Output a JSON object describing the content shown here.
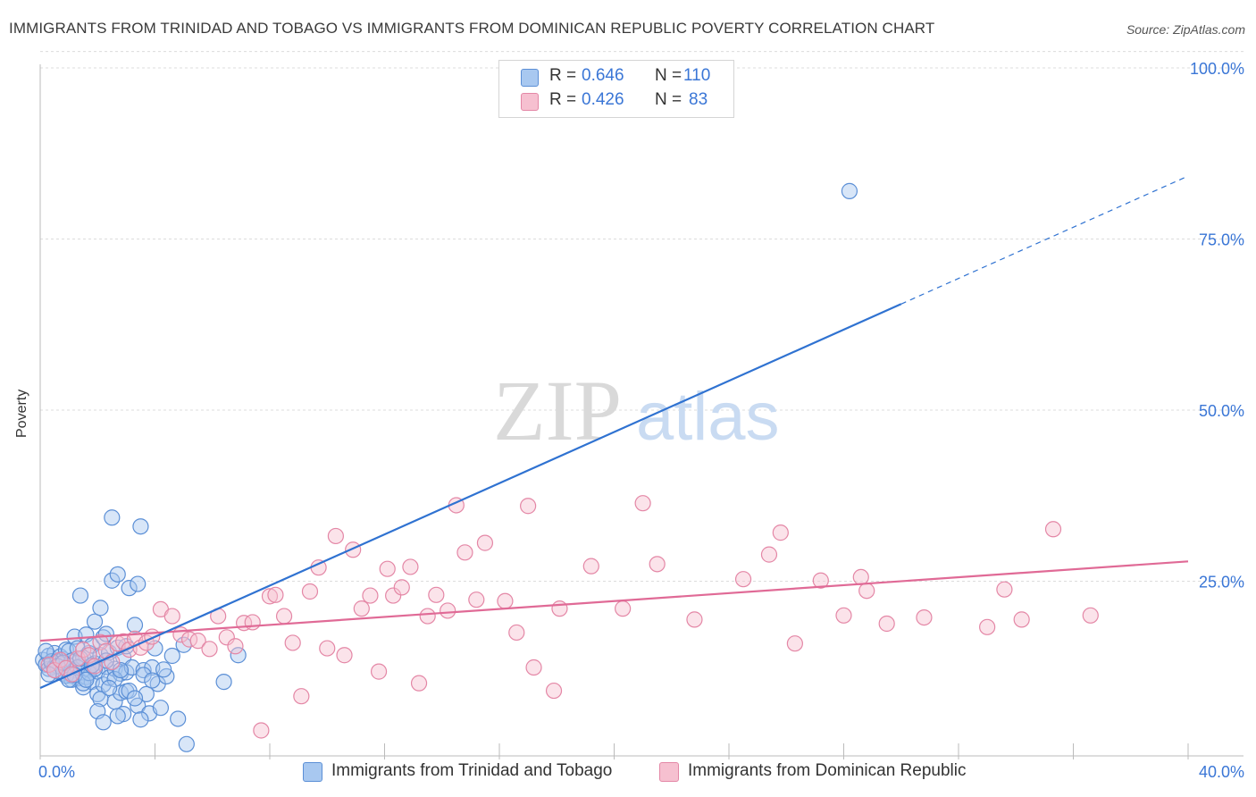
{
  "header": {
    "title": "IMMIGRANTS FROM TRINIDAD AND TOBAGO VS IMMIGRANTS FROM DOMINICAN REPUBLIC POVERTY CORRELATION CHART",
    "source": "Source: ZipAtlas.com"
  },
  "legend": {
    "r_label": "R =",
    "n_label": "N =",
    "series": [
      {
        "r": "0.646",
        "n": "110"
      },
      {
        "r": "0.426",
        "n": "83"
      }
    ]
  },
  "watermark": {
    "zip": "ZIP",
    "atlas": "atlas"
  },
  "colors": {
    "blue_fill": "#a8c8f0",
    "blue_stroke": "#5b8fd6",
    "blue_line": "#2f72d1",
    "pink_fill": "#f6c0d0",
    "pink_stroke": "#e487a6",
    "pink_line": "#e06a96",
    "tick_label": "#3a76d6",
    "grid": "#dcdcdc"
  },
  "chart_data": {
    "type": "scatter",
    "title": "IMMIGRANTS FROM TRINIDAD AND TOBAGO VS IMMIGRANTS FROM DOMINICAN REPUBLIC POVERTY CORRELATION CHART",
    "xlabel": "",
    "ylabel": "Poverty",
    "xlim": [
      0,
      40
    ],
    "ylim": [
      0,
      105
    ],
    "x_tick_labels": [
      "0.0%",
      "40.0%"
    ],
    "y_ticks": [
      25,
      50,
      75,
      100
    ],
    "y_tick_labels": [
      "25.0%",
      "50.0%",
      "75.0%",
      "100.0%"
    ],
    "grid": true,
    "series": [
      {
        "name": "Immigrants from Trinidad and Tobago",
        "r": 0.646,
        "n": 110,
        "trend": {
          "x0": 0,
          "y0": 9.4,
          "x1": 30,
          "y1": 65.5,
          "dashed_to_x": 40,
          "dashed_to_y": 84.2
        },
        "points": [
          [
            0.1,
            13.5
          ],
          [
            0.2,
            12.8
          ],
          [
            0.3,
            14.1
          ],
          [
            0.3,
            12.2
          ],
          [
            0.4,
            13.0
          ],
          [
            0.5,
            12.5
          ],
          [
            0.5,
            14.5
          ],
          [
            0.6,
            11.8
          ],
          [
            0.6,
            13.2
          ],
          [
            0.7,
            12.9
          ],
          [
            0.7,
            14.0
          ],
          [
            0.8,
            11.5
          ],
          [
            0.8,
            13.6
          ],
          [
            0.9,
            12.3
          ],
          [
            0.9,
            15.0
          ],
          [
            1.0,
            12.7
          ],
          [
            1.0,
            14.8
          ],
          [
            1.1,
            11.2
          ],
          [
            1.1,
            13.4
          ],
          [
            1.2,
            12.0
          ],
          [
            1.2,
            16.9
          ],
          [
            1.3,
            10.8
          ],
          [
            1.3,
            15.2
          ],
          [
            1.4,
            12.6
          ],
          [
            1.4,
            22.9
          ],
          [
            1.5,
            13.8
          ],
          [
            1.5,
            9.5
          ],
          [
            1.6,
            11.0
          ],
          [
            1.6,
            17.2
          ],
          [
            1.7,
            14.5
          ],
          [
            1.7,
            12.1
          ],
          [
            1.8,
            10.3
          ],
          [
            1.8,
            15.6
          ],
          [
            1.9,
            19.1
          ],
          [
            1.9,
            13.0
          ],
          [
            2.0,
            8.5
          ],
          [
            2.0,
            11.8
          ],
          [
            2.1,
            14.2
          ],
          [
            2.1,
            21.1
          ],
          [
            2.2,
            16.8
          ],
          [
            2.2,
            9.9
          ],
          [
            2.3,
            12.5
          ],
          [
            2.3,
            17.3
          ],
          [
            2.4,
            10.9
          ],
          [
            2.4,
            14.6
          ],
          [
            2.5,
            25.1
          ],
          [
            2.5,
            34.3
          ],
          [
            2.6,
            7.4
          ],
          [
            2.6,
            12.2
          ],
          [
            2.7,
            15.3
          ],
          [
            2.7,
            26.0
          ],
          [
            2.8,
            8.7
          ],
          [
            2.8,
            11.5
          ],
          [
            2.9,
            5.6
          ],
          [
            2.9,
            13.9
          ],
          [
            3.0,
            11.7
          ],
          [
            3.0,
            8.9
          ],
          [
            3.1,
            24.0
          ],
          [
            3.2,
            12.4
          ],
          [
            3.3,
            18.6
          ],
          [
            3.4,
            24.6
          ],
          [
            3.4,
            6.8
          ],
          [
            3.5,
            33.0
          ],
          [
            3.6,
            12.0
          ],
          [
            3.7,
            8.5
          ],
          [
            3.8,
            5.7
          ],
          [
            3.9,
            12.4
          ],
          [
            4.0,
            15.2
          ],
          [
            4.1,
            10.0
          ],
          [
            4.2,
            6.5
          ],
          [
            4.4,
            11.1
          ],
          [
            4.6,
            14.1
          ],
          [
            4.8,
            4.9
          ],
          [
            5.0,
            15.7
          ],
          [
            5.1,
            1.2
          ],
          [
            6.4,
            10.3
          ],
          [
            6.9,
            14.2
          ],
          [
            1.1,
            10.6
          ],
          [
            0.4,
            13.3
          ],
          [
            0.6,
            12.6
          ],
          [
            0.9,
            11.2
          ],
          [
            1.3,
            12.4
          ],
          [
            1.5,
            10.1
          ],
          [
            1.7,
            11.6
          ],
          [
            1.9,
            12.2
          ],
          [
            2.1,
            7.8
          ],
          [
            2.3,
            13.4
          ],
          [
            2.6,
            10.7
          ],
          [
            2.8,
            12.0
          ],
          [
            3.1,
            9.0
          ],
          [
            3.3,
            7.9
          ],
          [
            3.6,
            11.3
          ],
          [
            3.9,
            10.5
          ],
          [
            4.3,
            12.1
          ],
          [
            0.2,
            14.8
          ],
          [
            0.5,
            12.0
          ],
          [
            0.8,
            13.1
          ],
          [
            1.0,
            10.6
          ],
          [
            1.2,
            11.3
          ],
          [
            1.4,
            13.7
          ],
          [
            1.6,
            10.6
          ],
          [
            1.8,
            12.7
          ],
          [
            2.0,
            6.0
          ],
          [
            2.2,
            4.4
          ],
          [
            2.4,
            9.4
          ],
          [
            2.7,
            5.3
          ],
          [
            3.0,
            15.5
          ],
          [
            3.5,
            4.8
          ],
          [
            28.2,
            82.0
          ],
          [
            0.3,
            11.4
          ]
        ]
      },
      {
        "name": "Immigrants from Dominican Republic",
        "r": 0.426,
        "n": 83,
        "trend": {
          "x0": 0,
          "y0": 16.3,
          "x1": 40,
          "y1": 27.9
        },
        "points": [
          [
            0.3,
            12.8
          ],
          [
            0.5,
            12.0
          ],
          [
            0.7,
            13.5
          ],
          [
            0.9,
            12.3
          ],
          [
            1.1,
            11.4
          ],
          [
            1.3,
            13.7
          ],
          [
            1.5,
            15.0
          ],
          [
            1.7,
            14.2
          ],
          [
            1.9,
            12.6
          ],
          [
            2.1,
            16.1
          ],
          [
            2.3,
            14.8
          ],
          [
            2.5,
            13.2
          ],
          [
            2.7,
            15.9
          ],
          [
            2.9,
            16.2
          ],
          [
            3.1,
            15.0
          ],
          [
            3.3,
            16.6
          ],
          [
            3.5,
            15.3
          ],
          [
            3.7,
            16.0
          ],
          [
            3.9,
            16.9
          ],
          [
            4.2,
            20.9
          ],
          [
            4.6,
            19.9
          ],
          [
            4.9,
            17.2
          ],
          [
            5.2,
            16.5
          ],
          [
            5.5,
            16.3
          ],
          [
            5.9,
            15.1
          ],
          [
            6.2,
            19.9
          ],
          [
            6.5,
            16.8
          ],
          [
            6.8,
            15.5
          ],
          [
            7.1,
            18.9
          ],
          [
            7.4,
            19.0
          ],
          [
            7.7,
            3.2
          ],
          [
            8.0,
            22.8
          ],
          [
            8.2,
            23.0
          ],
          [
            8.5,
            19.9
          ],
          [
            8.8,
            16.0
          ],
          [
            9.1,
            8.2
          ],
          [
            9.4,
            23.5
          ],
          [
            9.7,
            27.0
          ],
          [
            10.0,
            15.2
          ],
          [
            10.3,
            31.6
          ],
          [
            10.6,
            14.2
          ],
          [
            10.9,
            29.6
          ],
          [
            11.2,
            21.0
          ],
          [
            11.5,
            22.9
          ],
          [
            11.8,
            11.8
          ],
          [
            12.1,
            26.8
          ],
          [
            12.3,
            22.9
          ],
          [
            12.6,
            24.1
          ],
          [
            12.9,
            27.1
          ],
          [
            13.2,
            10.1
          ],
          [
            13.5,
            19.9
          ],
          [
            13.8,
            23.0
          ],
          [
            14.2,
            20.7
          ],
          [
            14.5,
            36.1
          ],
          [
            14.8,
            29.2
          ],
          [
            15.2,
            22.3
          ],
          [
            15.5,
            30.6
          ],
          [
            16.2,
            22.1
          ],
          [
            17.0,
            36.0
          ],
          [
            17.2,
            12.4
          ],
          [
            17.9,
            9.0
          ],
          [
            18.1,
            21.0
          ],
          [
            19.2,
            27.2
          ],
          [
            20.3,
            21.0
          ],
          [
            21.0,
            36.4
          ],
          [
            21.5,
            27.5
          ],
          [
            22.8,
            19.4
          ],
          [
            24.5,
            25.3
          ],
          [
            25.4,
            28.9
          ],
          [
            25.8,
            32.1
          ],
          [
            26.3,
            15.9
          ],
          [
            27.2,
            25.1
          ],
          [
            28.0,
            20.0
          ],
          [
            28.6,
            25.6
          ],
          [
            28.8,
            23.6
          ],
          [
            29.5,
            18.8
          ],
          [
            30.8,
            19.7
          ],
          [
            33.0,
            18.3
          ],
          [
            33.6,
            23.8
          ],
          [
            34.2,
            19.4
          ],
          [
            35.3,
            32.6
          ],
          [
            36.6,
            20.0
          ],
          [
            16.6,
            17.5
          ]
        ]
      }
    ]
  },
  "bottom_legend": {
    "series_a": "Immigrants from Trinidad and Tobago",
    "series_b": "Immigrants from Dominican Republic"
  }
}
